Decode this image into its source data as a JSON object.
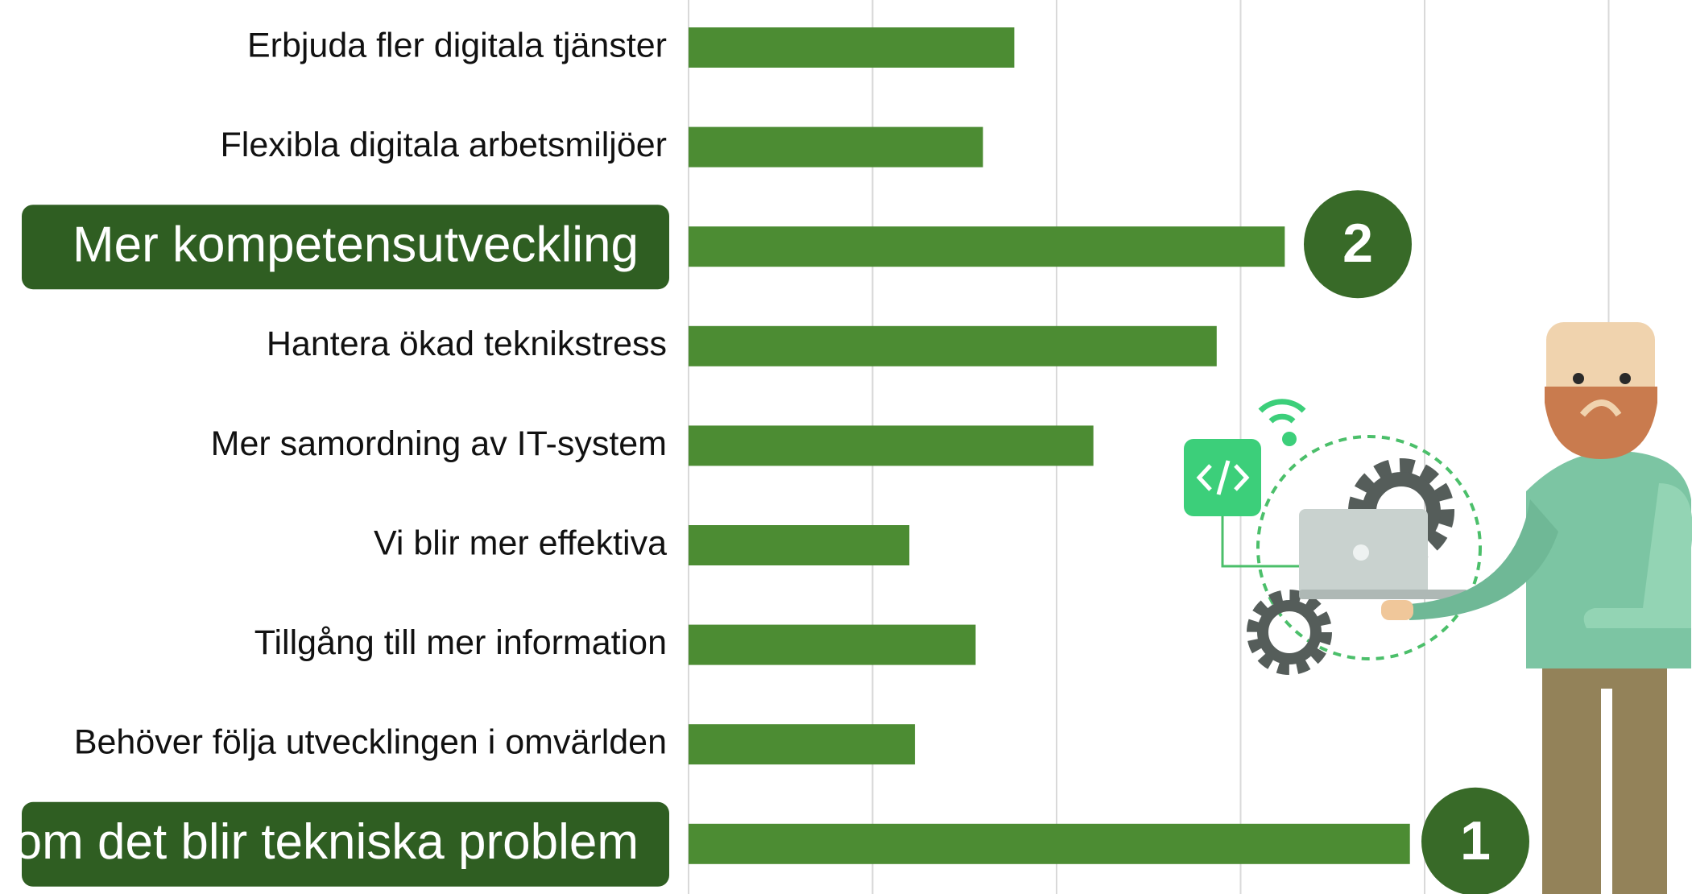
{
  "chart_data": {
    "type": "bar",
    "orientation": "horizontal",
    "categories": [
      "Erbjuda fler digitala tjänster",
      "Flexibla digitala arbetsmiljöer",
      "Mer kompetensutveckling",
      "Hantera ökad teknikstress",
      "Mer samordning av IT-system",
      "Vi blir mer effektiva",
      "Tillgång till mer information",
      "Behöver följa utvecklingen i omvärlden",
      "om det blir tekniska problem"
    ],
    "values": [
      1.77,
      1.6,
      3.24,
      2.87,
      2.2,
      1.2,
      1.56,
      1.23,
      3.92
    ],
    "color": "#4c8c33",
    "xlim": [
      0,
      5
    ],
    "xticks": [
      0,
      1,
      2,
      3,
      4,
      5
    ],
    "grid": true,
    "annotations": [
      {
        "text": "2"
      },
      {
        "text": "1"
      }
    ]
  }
}
